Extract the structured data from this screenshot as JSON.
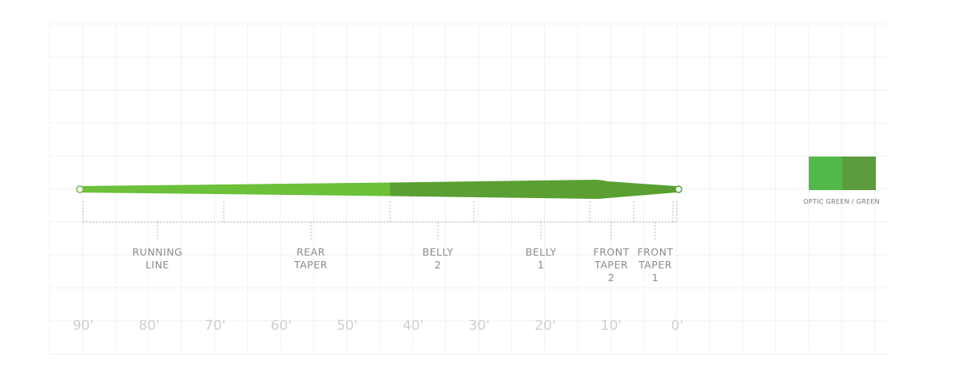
{
  "sections": [
    {
      "lines": [
        "RUNNING",
        "LINE"
      ]
    },
    {
      "lines": [
        "REAR",
        "TAPER"
      ]
    },
    {
      "lines": [
        "BELLY",
        "2"
      ]
    },
    {
      "lines": [
        "BELLY",
        "1"
      ]
    },
    {
      "lines": [
        "FRONT",
        "TAPER",
        "2"
      ]
    },
    {
      "lines": [
        "FRONT",
        "TAPER",
        "1"
      ]
    }
  ],
  "scale": [
    "90'",
    "80'",
    "70'",
    "60'",
    "50'",
    "40'",
    "30'",
    "20'",
    "10'",
    "0'"
  ],
  "swatch": {
    "label": "OPTIC GREEN / GREEN"
  }
}
